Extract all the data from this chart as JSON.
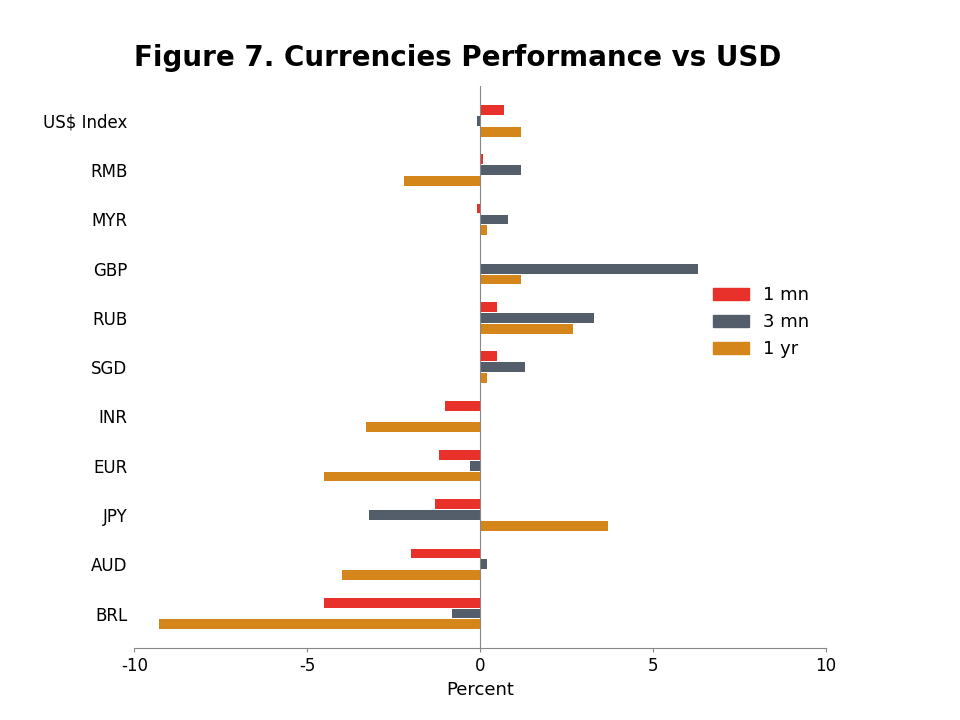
{
  "title": "Figure 7. Currencies Performance vs USD",
  "categories": [
    "US$ Index",
    "RMB",
    "MYR",
    "GBP",
    "RUB",
    "SGD",
    "INR",
    "EUR",
    "JPY",
    "AUD",
    "BRL"
  ],
  "series": {
    "1 mn": [
      0.7,
      0.1,
      -0.1,
      0.0,
      0.5,
      0.5,
      -1.0,
      -1.2,
      -1.3,
      -2.0,
      -4.5
    ],
    "3 mn": [
      -0.1,
      1.2,
      0.8,
      6.3,
      3.3,
      1.3,
      0.0,
      -0.3,
      -3.2,
      0.2,
      -0.8
    ],
    "1 yr": [
      1.2,
      -2.2,
      0.2,
      1.2,
      2.7,
      0.2,
      -3.3,
      -4.5,
      3.7,
      -4.0,
      -9.3
    ]
  },
  "colors": {
    "1 mn": "#e8312a",
    "3 mn": "#545e6b",
    "1 yr": "#d4861a"
  },
  "xlim": [
    -10,
    10
  ],
  "xlabel": "Percent",
  "xticks": [
    -10,
    -5,
    0,
    5,
    10
  ],
  "bar_height": 0.22,
  "background_color": "#ffffff"
}
